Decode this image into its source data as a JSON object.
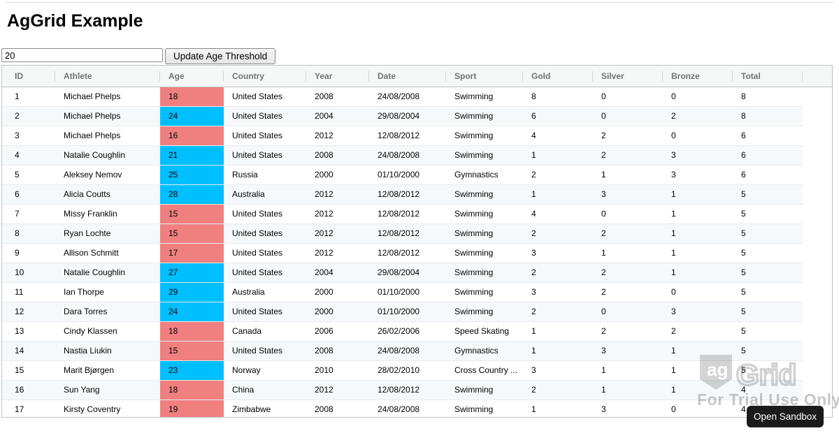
{
  "title": "AgGrid Example",
  "toolbar": {
    "age_input_value": "20",
    "update_button_label": "Update Age Threshold"
  },
  "grid": {
    "age_threshold": 20,
    "colors": {
      "age_below_threshold": "#f08080",
      "age_at_or_above_threshold": "#00bfff"
    },
    "columns": [
      {
        "key": "id",
        "label": "ID"
      },
      {
        "key": "athlete",
        "label": "Athlete"
      },
      {
        "key": "age",
        "label": "Age"
      },
      {
        "key": "country",
        "label": "Country"
      },
      {
        "key": "year",
        "label": "Year"
      },
      {
        "key": "date",
        "label": "Date"
      },
      {
        "key": "sport",
        "label": "Sport"
      },
      {
        "key": "gold",
        "label": "Gold"
      },
      {
        "key": "silver",
        "label": "Silver"
      },
      {
        "key": "bronze",
        "label": "Bronze"
      },
      {
        "key": "total",
        "label": "Total"
      }
    ],
    "rows": [
      {
        "id": 1,
        "athlete": "Michael Phelps",
        "age": 18,
        "country": "United States",
        "year": 2008,
        "date": "24/08/2008",
        "sport": "Swimming",
        "gold": 8,
        "silver": 0,
        "bronze": 0,
        "total": 8
      },
      {
        "id": 2,
        "athlete": "Michael Phelps",
        "age": 24,
        "country": "United States",
        "year": 2004,
        "date": "29/08/2004",
        "sport": "Swimming",
        "gold": 6,
        "silver": 0,
        "bronze": 2,
        "total": 8
      },
      {
        "id": 3,
        "athlete": "Michael Phelps",
        "age": 16,
        "country": "United States",
        "year": 2012,
        "date": "12/08/2012",
        "sport": "Swimming",
        "gold": 4,
        "silver": 2,
        "bronze": 0,
        "total": 6
      },
      {
        "id": 4,
        "athlete": "Natalie Coughlin",
        "age": 21,
        "country": "United States",
        "year": 2008,
        "date": "24/08/2008",
        "sport": "Swimming",
        "gold": 1,
        "silver": 2,
        "bronze": 3,
        "total": 6
      },
      {
        "id": 5,
        "athlete": "Aleksey Nemov",
        "age": 25,
        "country": "Russia",
        "year": 2000,
        "date": "01/10/2000",
        "sport": "Gymnastics",
        "gold": 2,
        "silver": 1,
        "bronze": 3,
        "total": 6
      },
      {
        "id": 6,
        "athlete": "Alicia Coutts",
        "age": 28,
        "country": "Australia",
        "year": 2012,
        "date": "12/08/2012",
        "sport": "Swimming",
        "gold": 1,
        "silver": 3,
        "bronze": 1,
        "total": 5
      },
      {
        "id": 7,
        "athlete": "Missy Franklin",
        "age": 15,
        "country": "United States",
        "year": 2012,
        "date": "12/08/2012",
        "sport": "Swimming",
        "gold": 4,
        "silver": 0,
        "bronze": 1,
        "total": 5
      },
      {
        "id": 8,
        "athlete": "Ryan Lochte",
        "age": 15,
        "country": "United States",
        "year": 2012,
        "date": "12/08/2012",
        "sport": "Swimming",
        "gold": 2,
        "silver": 2,
        "bronze": 1,
        "total": 5
      },
      {
        "id": 9,
        "athlete": "Allison Schmitt",
        "age": 17,
        "country": "United States",
        "year": 2012,
        "date": "12/08/2012",
        "sport": "Swimming",
        "gold": 3,
        "silver": 1,
        "bronze": 1,
        "total": 5
      },
      {
        "id": 10,
        "athlete": "Natalie Coughlin",
        "age": 27,
        "country": "United States",
        "year": 2004,
        "date": "29/08/2004",
        "sport": "Swimming",
        "gold": 2,
        "silver": 2,
        "bronze": 1,
        "total": 5
      },
      {
        "id": 11,
        "athlete": "Ian Thorpe",
        "age": 29,
        "country": "Australia",
        "year": 2000,
        "date": "01/10/2000",
        "sport": "Swimming",
        "gold": 3,
        "silver": 2,
        "bronze": 0,
        "total": 5
      },
      {
        "id": 12,
        "athlete": "Dara Torres",
        "age": 24,
        "country": "United States",
        "year": 2000,
        "date": "01/10/2000",
        "sport": "Swimming",
        "gold": 2,
        "silver": 0,
        "bronze": 3,
        "total": 5
      },
      {
        "id": 13,
        "athlete": "Cindy Klassen",
        "age": 18,
        "country": "Canada",
        "year": 2006,
        "date": "26/02/2006",
        "sport": "Speed Skating",
        "gold": 1,
        "silver": 2,
        "bronze": 2,
        "total": 5
      },
      {
        "id": 14,
        "athlete": "Nastia Liukin",
        "age": 15,
        "country": "United States",
        "year": 2008,
        "date": "24/08/2008",
        "sport": "Gymnastics",
        "gold": 1,
        "silver": 3,
        "bronze": 1,
        "total": 5
      },
      {
        "id": 15,
        "athlete": "Marit Bjørgen",
        "age": 23,
        "country": "Norway",
        "year": 2010,
        "date": "28/02/2010",
        "sport": "Cross Country ...",
        "gold": 3,
        "silver": 1,
        "bronze": 1,
        "total": 5
      },
      {
        "id": 16,
        "athlete": "Sun Yang",
        "age": 18,
        "country": "China",
        "year": 2012,
        "date": "12/08/2012",
        "sport": "Swimming",
        "gold": 2,
        "silver": 1,
        "bronze": 1,
        "total": 4
      },
      {
        "id": 17,
        "athlete": "Kirsty Coventry",
        "age": 19,
        "country": "Zimbabwe",
        "year": 2008,
        "date": "24/08/2008",
        "sport": "Swimming",
        "gold": 1,
        "silver": 3,
        "bronze": 0,
        "total": 4
      }
    ]
  },
  "watermark": {
    "logo_text_ag": "ag",
    "logo_text_grid": "Grid",
    "trial_text": "For Trial Use Only",
    "open_sandbox_label": "Open Sandbox",
    "open_sandbox_bg": "#1b1b1b"
  }
}
